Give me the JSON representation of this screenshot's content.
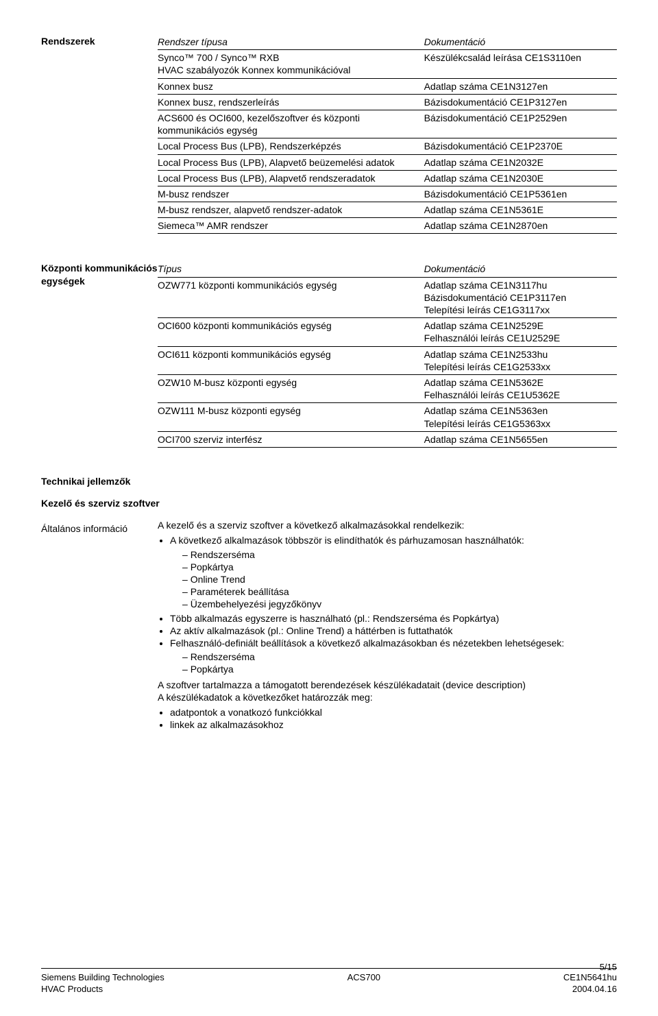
{
  "systems_section": {
    "label": "Rendszerek",
    "col1_header": "Rendszer típusa",
    "col2_header": "Dokumentáció",
    "rows": [
      {
        "left": "Synco™ 700 / Synco™ RXB\nHVAC szabályozók Konnex kommunikációval",
        "right": "Készülékcsalád leírása CE1S3110en"
      },
      {
        "left": "Konnex busz",
        "right": "Adatlap száma CE1N3127en"
      },
      {
        "left": "Konnex busz, rendszerleírás",
        "right": "Bázisdokumentáció CE1P3127en"
      },
      {
        "left": "ACS600 és OCI600, kezelőszoftver és központi kommunikációs egység",
        "right": "Bázisdokumentáció CE1P2529en"
      },
      {
        "left": "Local Process Bus (LPB), Rendszerképzés",
        "right": "Bázisdokumentáció CE1P2370E"
      },
      {
        "left": "Local Process Bus (LPB), Alapvető beüzemelési adatok",
        "right": "Adatlap száma CE1N2032E"
      },
      {
        "left": "Local Process Bus (LPB), Alapvető rendszeradatok",
        "right": "Adatlap száma CE1N2030E"
      },
      {
        "left": "M-busz rendszer",
        "right": "Bázisdokumentáció CE1P5361en"
      },
      {
        "left": "M-busz rendszer, alapvető rendszer-adatok",
        "right": "Adatlap száma CE1N5361E"
      },
      {
        "left": "Siemeca™ AMR rendszer",
        "right": "Adatlap száma CE1N2870en"
      }
    ]
  },
  "units_section": {
    "label": "Központi kommunikációs egységek",
    "col1_header": "Típus",
    "col2_header": "Dokumentáció",
    "rows": [
      {
        "left": "OZW771 központi kommunikációs egység",
        "right": "Adatlap száma CE1N3117hu\nBázisdokumentáció CE1P3117en\nTelepítési leírás CE1G3117xx"
      },
      {
        "left": "OCI600 központi kommunikációs egység",
        "right": "Adatlap száma CE1N2529E\nFelhasználói leírás CE1U2529E"
      },
      {
        "left": "OCI611 központi kommunikációs egység",
        "right": "Adatlap száma CE1N2533hu\nTelepítési leírás CE1G2533xx"
      },
      {
        "left": "OZW10 M-busz központi egység",
        "right": "Adatlap száma CE1N5362E\nFelhasználói leírás CE1U5362E"
      },
      {
        "left": "OZW111 M-busz központi egység",
        "right": "Adatlap száma CE1N5363en\nTelepítési leírás CE1G5363xx"
      },
      {
        "left": "OCI700 szerviz interfész",
        "right": "Adatlap száma CE1N5655en"
      }
    ]
  },
  "tech_heading": "Technikai jellemzők",
  "sw_heading": "Kezelő és szerviz szoftver",
  "info_label": "Általános információ",
  "intro_line": "A kezelő és a szerviz szoftver a következő alkalmazásokkal rendelkezik:",
  "b1": "A következő alkalmazások többször is elindíthatók és párhuzamosan használhatók:",
  "d1": "Rendszerséma",
  "d2": "Popkártya",
  "d3": "Online Trend",
  "d4": "Paraméterek beállítása",
  "d5": "Üzembehelyezési jegyzőkönyv",
  "b2": "Több alkalmazás egyszerre is használható (pl.: Rendszerséma és Popkártya)",
  "b3": "Az aktív alkalmazások (pl.: Online Trend) a háttérben is futtathatók",
  "b4": "Felhasználó-definiált beállítások a következő alkalmazásokban és nézetekben lehetségesek:",
  "d6": "Rendszerséma",
  "d7": "Popkártya",
  "line2": "A szoftver tartalmazza a támogatott berendezések készülékadatait (device description)",
  "line3": "A készülékadatok a következőket határozzák meg:",
  "b5": "adatpontok a vonatkozó funkciókkal",
  "b6": "linkek az alkalmazásokhoz",
  "page_num": "5/15",
  "footer": {
    "left1": "Siemens Building Technologies",
    "left2": "HVAC Products",
    "mid": "ACS700",
    "right1": "CE1N5641hu",
    "right2": "2004.04.16"
  }
}
